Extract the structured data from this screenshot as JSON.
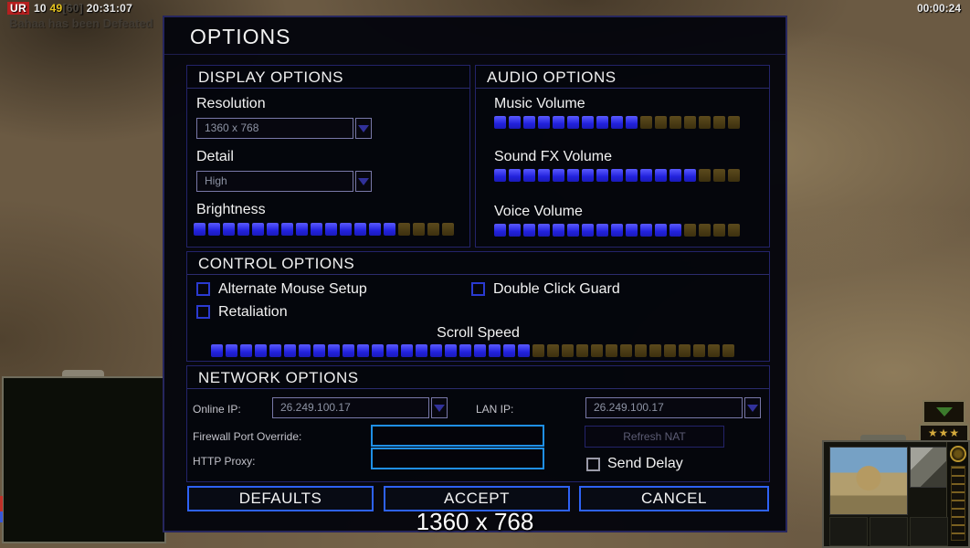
{
  "hud": {
    "top_left": {
      "badge": "UR",
      "value1": "10",
      "value2": "49",
      "bracket": "[60]",
      "clock": "20:31:07"
    },
    "defeat_message": "Bahaa has been Defeated",
    "timer": "00:00:24",
    "rank_stars": "★★★"
  },
  "dialog": {
    "title": "OPTIONS",
    "display": {
      "title": "DISPLAY OPTIONS",
      "resolution_label": "Resolution",
      "resolution_value": "1360 x 768",
      "detail_label": "Detail",
      "detail_value": "High",
      "brightness_label": "Brightness",
      "brightness": {
        "filled": 14,
        "total": 18
      }
    },
    "audio": {
      "title": "AUDIO OPTIONS",
      "sliders": [
        {
          "label": "Music Volume",
          "filled": 10,
          "total": 17
        },
        {
          "label": "Sound FX Volume",
          "filled": 14,
          "total": 17
        },
        {
          "label": "Voice Volume",
          "filled": 13,
          "total": 17
        }
      ]
    },
    "control": {
      "title": "CONTROL OPTIONS",
      "checkboxes": [
        {
          "label": "Alternate Mouse Setup",
          "checked": false
        },
        {
          "label": "Double Click Guard",
          "checked": false
        },
        {
          "label": "Retaliation",
          "checked": false
        }
      ],
      "scroll_label": "Scroll Speed",
      "scroll": {
        "filled": 22,
        "total": 36
      }
    },
    "network": {
      "title": "NETWORK OPTIONS",
      "online_ip_label": "Online IP:",
      "online_ip_value": "26.249.100.17",
      "lan_ip_label": "LAN IP:",
      "lan_ip_value": "26.249.100.17",
      "firewall_label": "Firewall Port Override:",
      "firewall_value": "",
      "http_proxy_label": "HTTP Proxy:",
      "http_proxy_value": "",
      "refresh_nat_label": "Refresh NAT",
      "send_delay_label": "Send Delay",
      "send_delay_checked": false
    },
    "buttons": {
      "defaults": "DEFAULTS",
      "accept": "ACCEPT",
      "cancel": "CANCEL"
    },
    "resolution_overlay": "1360 x 768"
  },
  "colors": {
    "slider_filled": "#2a2af0",
    "slider_empty": "#4a3a14",
    "dialog_border": "#26265e",
    "button_border": "#2e62f5",
    "network_input_border": "#1f8fe6",
    "checkbox_border": "#2a3ad0",
    "badge_red": "#b51f1f",
    "hud_yellow": "#e6c41e"
  }
}
